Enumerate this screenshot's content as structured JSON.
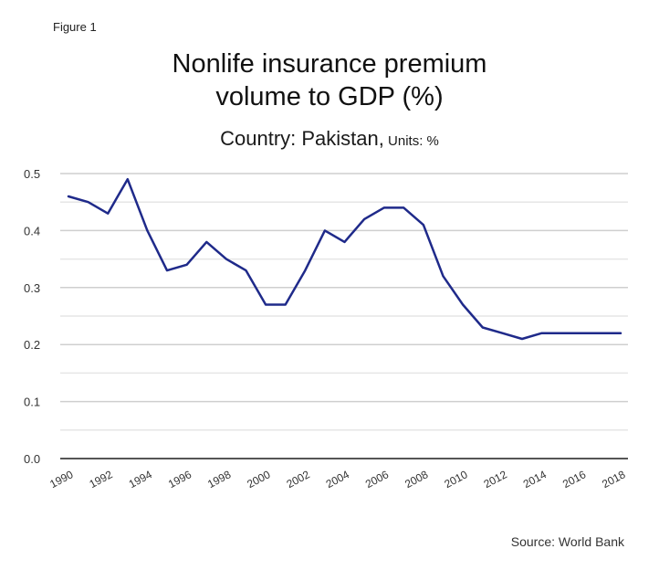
{
  "figure_label": "Figure 1",
  "source": "Source: World Bank",
  "chart_data": {
    "type": "line",
    "title": "Nonlife insurance premium volume to GDP (%)",
    "title_lines": [
      "Nonlife insurance premium",
      "volume to GDP (%)"
    ],
    "subtitle_main": "Country: Pakistan,",
    "subtitle_units": " Units: %",
    "xlabel": "",
    "ylabel": "",
    "ylim": [
      0.0,
      0.5
    ],
    "yticks": [
      0.0,
      0.1,
      0.2,
      0.3,
      0.4,
      0.5
    ],
    "ytick_labels": [
      "0.0",
      "0.1",
      "0.2",
      "0.3",
      "0.4",
      "0.5"
    ],
    "minor_gridlines": [
      0.05,
      0.15,
      0.25,
      0.35,
      0.45
    ],
    "grid": true,
    "xtick_labels": [
      "1990",
      "1992",
      "1994",
      "1996",
      "1998",
      "2000",
      "2002",
      "2004",
      "2006",
      "2008",
      "2010",
      "2012",
      "2014",
      "2016",
      "2018"
    ],
    "x": [
      1990,
      1991,
      1992,
      1993,
      1994,
      1995,
      1996,
      1997,
      1998,
      1999,
      2000,
      2001,
      2002,
      2003,
      2004,
      2005,
      2006,
      2007,
      2008,
      2009,
      2010,
      2011,
      2012,
      2013,
      2014,
      2015,
      2016,
      2017,
      2018
    ],
    "series": [
      {
        "name": "Pakistan",
        "color": "#1f2a8a",
        "values": [
          0.46,
          0.45,
          0.43,
          0.49,
          0.4,
          0.33,
          0.34,
          0.38,
          0.35,
          0.33,
          0.27,
          0.27,
          0.33,
          0.4,
          0.38,
          0.42,
          0.44,
          0.44,
          0.41,
          0.32,
          0.27,
          0.23,
          0.22,
          0.21,
          0.22,
          0.22,
          0.22,
          0.22,
          0.22
        ]
      }
    ],
    "legend": "none"
  }
}
